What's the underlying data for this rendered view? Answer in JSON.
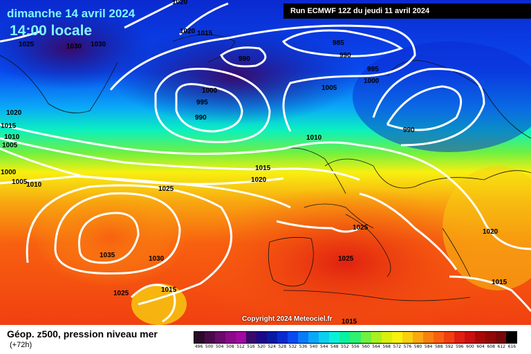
{
  "header": {
    "date": "dimanche 14 avril 2024",
    "time": "14:00 locale",
    "run": "Run ECMWF 12Z du jeudi 11 avril 2024"
  },
  "copyright": "Copyright 2024 Meteociel.fr",
  "legend": {
    "title": "Géop. z500, pression niveau mer",
    "subtitle": "(+72h)",
    "scale_values": [
      "496",
      "500",
      "504",
      "508",
      "512",
      "516",
      "520",
      "524",
      "528",
      "532",
      "536",
      "540",
      "544",
      "548",
      "552",
      "556",
      "560",
      "564",
      "568",
      "572",
      "576",
      "580",
      "584",
      "588",
      "592",
      "596",
      "600",
      "604",
      "608",
      "612",
      "616"
    ],
    "scale_colors": [
      "#2a0a2a",
      "#4a0a4a",
      "#6a0a6a",
      "#8a0a8a",
      "#a00aa0",
      "#3a0a6a",
      "#1a0a8a",
      "#0a1aa0",
      "#0a2ad0",
      "#0a4af0",
      "#0a7af8",
      "#0aa8f8",
      "#0ad0f0",
      "#0af0d8",
      "#0af0a0",
      "#30f070",
      "#70f040",
      "#a8f020",
      "#d8f010",
      "#f8f010",
      "#f8d010",
      "#f8a810",
      "#f88010",
      "#f86010",
      "#f04010",
      "#e02010",
      "#c81010",
      "#a80808",
      "#900808",
      "#780808",
      "#000000"
    ]
  },
  "isobar_labels": [
    {
      "text": "1020",
      "id": "l1"
    },
    {
      "text": "1020",
      "id": "l2"
    },
    {
      "text": "1015",
      "id": "l3"
    },
    {
      "text": "1025",
      "id": "l4"
    },
    {
      "text": "1030",
      "id": "l5"
    },
    {
      "text": "1030",
      "id": "l6"
    },
    {
      "text": "990",
      "id": "l7"
    },
    {
      "text": "985",
      "id": "l8"
    },
    {
      "text": "990",
      "id": "l9"
    },
    {
      "text": "995",
      "id": "l10"
    },
    {
      "text": "1000",
      "id": "l11"
    },
    {
      "text": "1005",
      "id": "l12"
    },
    {
      "text": "1000",
      "id": "l13"
    },
    {
      "text": "995",
      "id": "l14"
    },
    {
      "text": "990",
      "id": "l15"
    },
    {
      "text": "990",
      "id": "l16"
    },
    {
      "text": "1020",
      "id": "l17"
    },
    {
      "text": "1015",
      "id": "l18"
    },
    {
      "text": "1010",
      "id": "l19"
    },
    {
      "text": "1005",
      "id": "l20"
    },
    {
      "text": "1000",
      "id": "l21"
    },
    {
      "text": "1005",
      "id": "l22"
    },
    {
      "text": "1010",
      "id": "l23"
    },
    {
      "text": "1010",
      "id": "l24"
    },
    {
      "text": "1015",
      "id": "l25"
    },
    {
      "text": "1020",
      "id": "l26"
    },
    {
      "text": "1025",
      "id": "l27"
    },
    {
      "text": "1025",
      "id": "l28"
    },
    {
      "text": "1035",
      "id": "l29"
    },
    {
      "text": "1030",
      "id": "l30"
    },
    {
      "text": "1025",
      "id": "l31"
    },
    {
      "text": "1015",
      "id": "l32"
    },
    {
      "text": "1025",
      "id": "l33"
    },
    {
      "text": "1020",
      "id": "l34"
    },
    {
      "text": "1015",
      "id": "l35"
    },
    {
      "text": "1015",
      "id": "l36"
    }
  ]
}
